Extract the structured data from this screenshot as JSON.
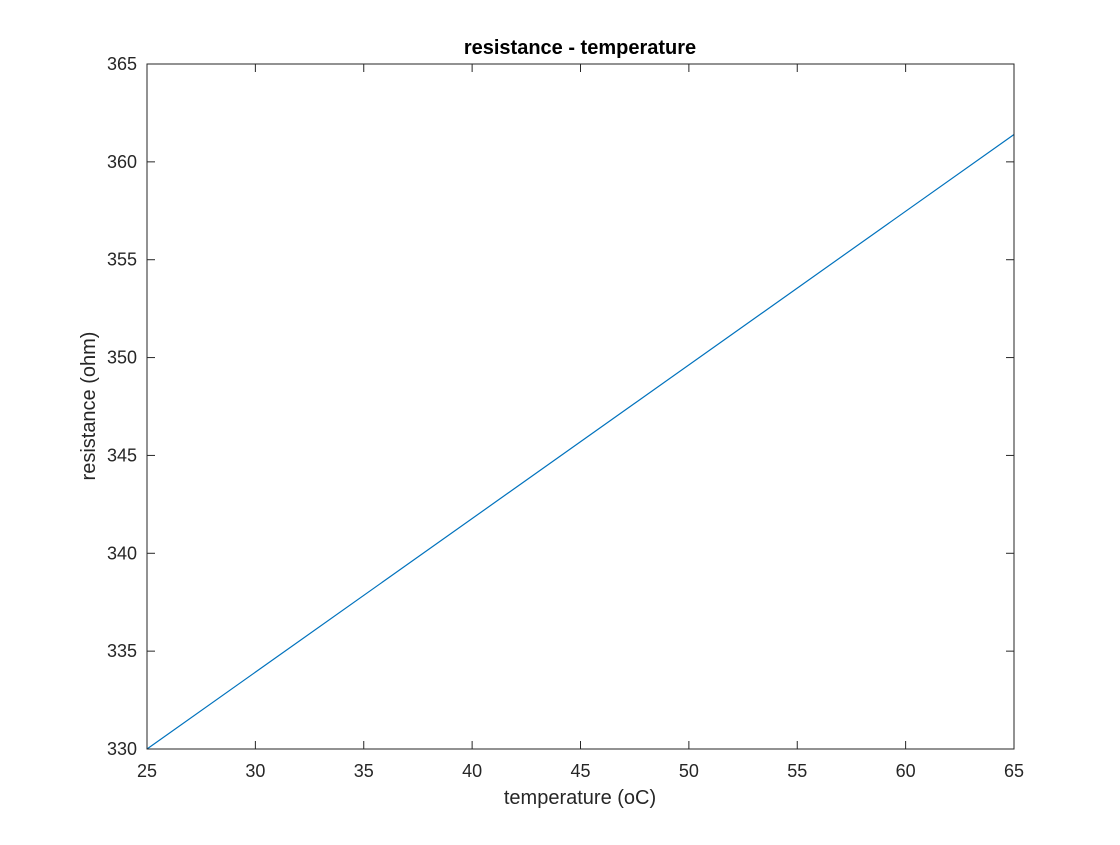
{
  "chart_data": {
    "type": "line",
    "title": "resistance - temperature",
    "xlabel": "temperature (oC)",
    "ylabel": "resistance (ohm)",
    "xlim": [
      25,
      65
    ],
    "ylim": [
      330,
      365
    ],
    "xticks": [
      25,
      30,
      35,
      40,
      45,
      50,
      55,
      60,
      65
    ],
    "yticks": [
      330,
      335,
      340,
      345,
      350,
      355,
      360,
      365
    ],
    "grid": false,
    "series": [
      {
        "color": "#0072BD",
        "x": [
          25,
          65
        ],
        "y": [
          330,
          361.4
        ]
      }
    ]
  },
  "colors": {
    "axis": "#262626",
    "background": "#ffffff"
  }
}
